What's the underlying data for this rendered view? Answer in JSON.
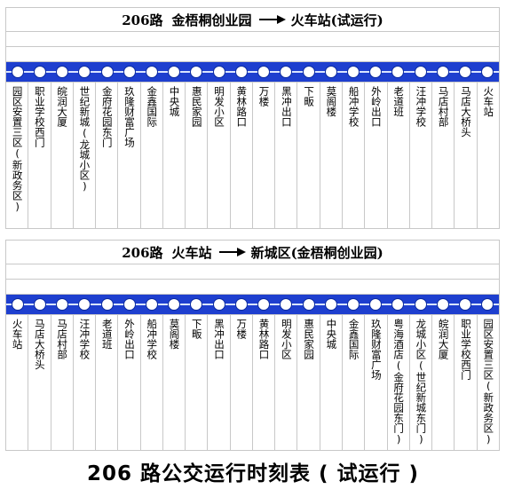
{
  "route1": {
    "number": "206路",
    "from": "金梧桐创业园",
    "to": "火车站(试运行)",
    "stations": [
      "园区安置三区(新政务区)",
      "职业学校西门",
      "皖润大厦",
      "世纪新城(龙城小区)",
      "金府花园东门",
      "玖隆财富广场",
      "金鑫国际",
      "中央城",
      "惠民家园",
      "明发小区",
      "黄林路口",
      "万楼",
      "黑冲出口",
      "下畈",
      "莫阁楼",
      "船冲学校",
      "外岭出口",
      "老道班",
      "汪冲学校",
      "马店村部",
      "马店大桥头",
      "火车站"
    ]
  },
  "route2": {
    "number": "206路",
    "from": "火车站",
    "to": "新城区(金梧桐创业园)",
    "stations": [
      "火车站",
      "马店大桥头",
      "马店村部",
      "汪冲学校",
      "老道班",
      "外岭出口",
      "船冲学校",
      "莫阁楼",
      "下畈",
      "黑冲出口",
      "万楼",
      "黄林路口",
      "明发小区",
      "惠民家园",
      "中央城",
      "金鑫国际",
      "玖隆财富广场",
      "粤海酒店(金府花园东门)",
      "龙城小区(世纪新城东门)",
      "皖润大厦",
      "职业学校西门",
      "园区安置三区(新政务区)"
    ]
  },
  "caption": "206 路公交运行时刻表 ( 试运行 )",
  "colors": {
    "line_band": "#1e3fcf",
    "dot": "#ffffff",
    "grid": "#c8c8c8"
  },
  "icons": {
    "direction": "arrow-right-icon",
    "stop": "stop-dot-icon"
  }
}
